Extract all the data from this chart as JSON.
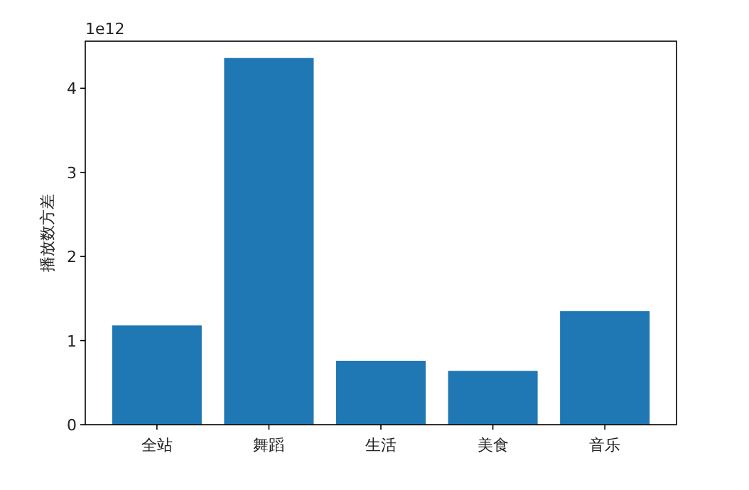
{
  "chart_data": {
    "type": "bar",
    "ylabel": "播放数方差",
    "annotations": [
      "1e12"
    ],
    "categories": [
      "全站",
      "舞蹈",
      "生活",
      "美食",
      "音乐"
    ],
    "values": [
      1.18,
      4.36,
      0.76,
      0.64,
      1.35
    ],
    "color": "#1f77b4",
    "ylim": [
      0,
      4.56
    ],
    "yticks": [
      0,
      1,
      2,
      3,
      4
    ],
    "grid": false
  }
}
